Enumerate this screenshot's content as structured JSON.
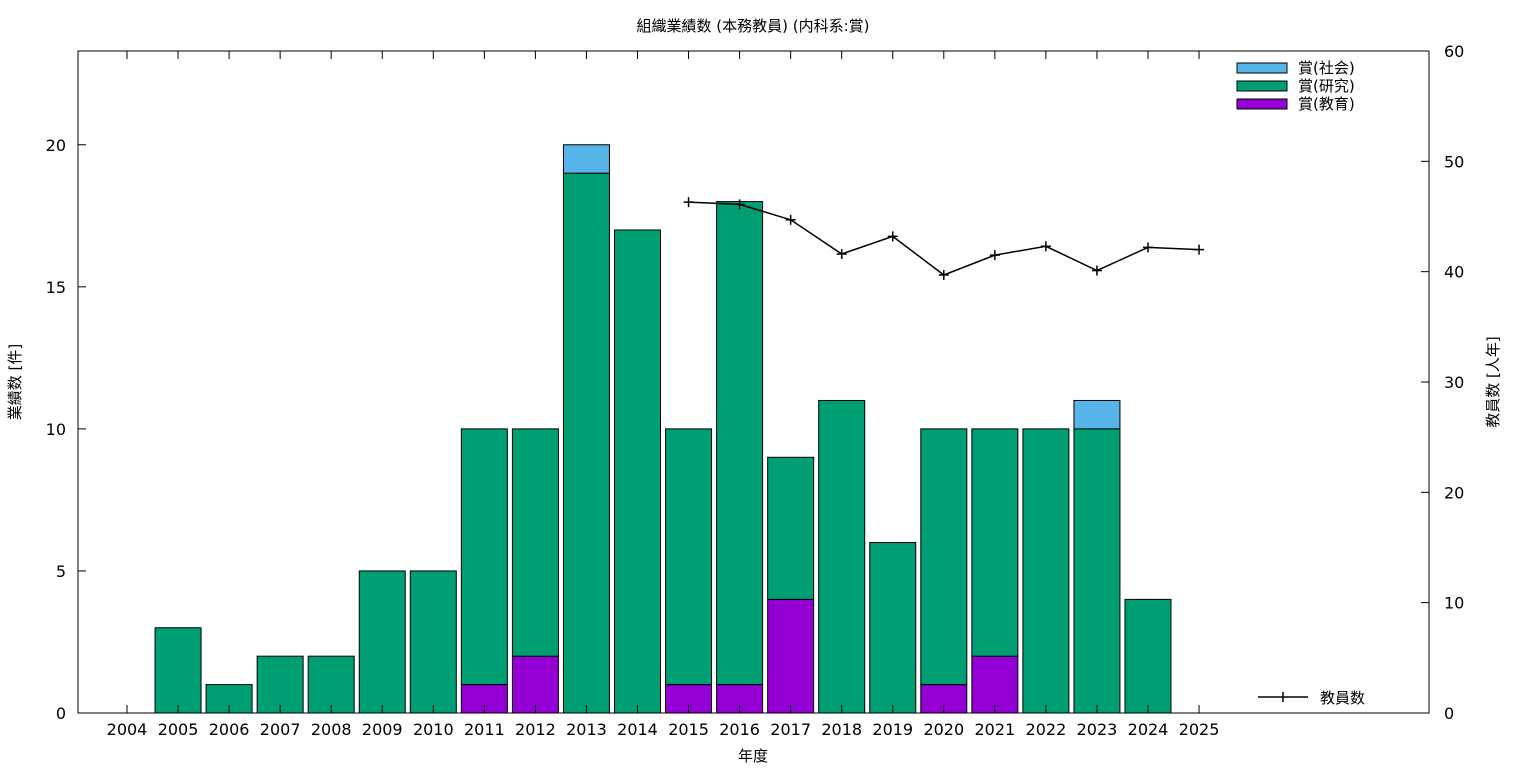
{
  "chart_data": {
    "type": "bar",
    "title": "組織業績数 (本務教員) (内科系:賞)",
    "xlabel": "年度",
    "ylabel": "業績数 [件]",
    "y2label": "教員数 [人年]",
    "ylim": [
      0,
      23.3
    ],
    "y2lim": [
      0,
      60
    ],
    "yticks": [
      0,
      5,
      10,
      15,
      20
    ],
    "y2ticks": [
      0,
      10,
      20,
      30,
      40,
      50,
      60
    ],
    "categories": [
      "2004",
      "2005",
      "2006",
      "2007",
      "2008",
      "2009",
      "2010",
      "2011",
      "2012",
      "2013",
      "2014",
      "2015",
      "2016",
      "2017",
      "2018",
      "2019",
      "2020",
      "2021",
      "2022",
      "2023",
      "2024",
      "2025"
    ],
    "stacked": true,
    "series": [
      {
        "name": "賞(教育)",
        "color": "#9400d3",
        "values": [
          0,
          0,
          0,
          0,
          0,
          0,
          0,
          1,
          2,
          0,
          0,
          1,
          1,
          4,
          0,
          0,
          1,
          2,
          0,
          0,
          0,
          0
        ]
      },
      {
        "name": "賞(研究)",
        "color": "#009e73",
        "values": [
          0,
          3,
          1,
          2,
          2,
          5,
          5,
          9,
          8,
          19,
          17,
          9,
          17,
          5,
          11,
          6,
          9,
          8,
          10,
          10,
          4,
          0
        ]
      },
      {
        "name": "賞(社会)",
        "color": "#56b4e9",
        "values": [
          0,
          0,
          0,
          0,
          0,
          0,
          0,
          0,
          0,
          1,
          0,
          0,
          0,
          0,
          0,
          0,
          0,
          0,
          0,
          1,
          0,
          0
        ]
      }
    ],
    "line_series": {
      "name": "教員数",
      "axis": "y2",
      "color": "#000000",
      "points": [
        {
          "x": "2015",
          "y": 46.3
        },
        {
          "x": "2016",
          "y": 46.1
        },
        {
          "x": "2017",
          "y": 44.7
        },
        {
          "x": "2018",
          "y": 41.6
        },
        {
          "x": "2019",
          "y": 43.2
        },
        {
          "x": "2020",
          "y": 39.7
        },
        {
          "x": "2021",
          "y": 41.5
        },
        {
          "x": "2022",
          "y": 42.3
        },
        {
          "x": "2023",
          "y": 40.1
        },
        {
          "x": "2024",
          "y": 42.2
        },
        {
          "x": "2025",
          "y": 42.0
        }
      ]
    },
    "grid": false,
    "legend_position": "top-right"
  }
}
